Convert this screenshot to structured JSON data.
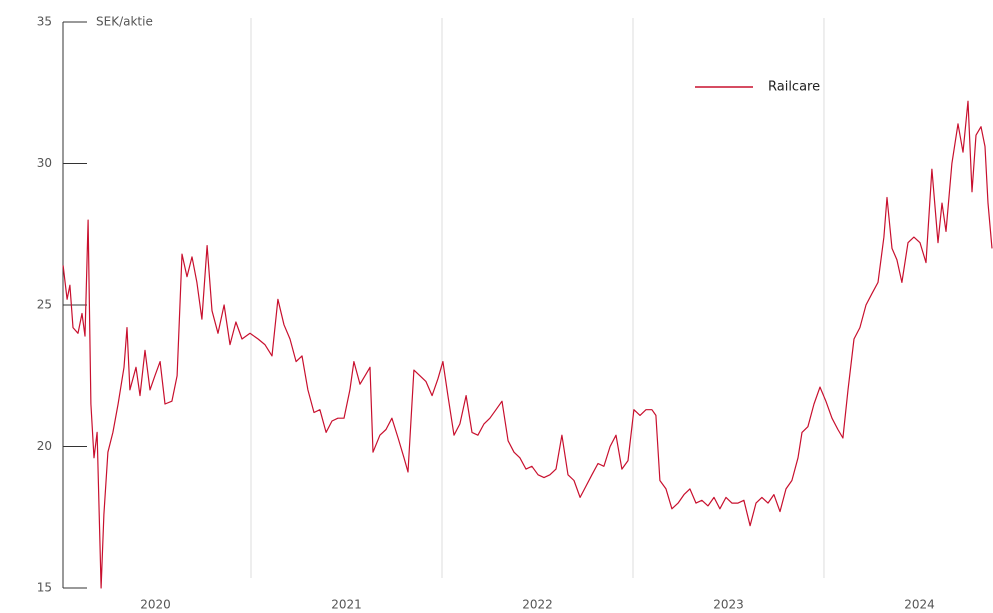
{
  "chart_data": {
    "type": "line",
    "y_label": "SEK/aktie",
    "x": [
      2020.016,
      2020.037,
      2020.052,
      2020.068,
      2020.094,
      2020.115,
      2020.131,
      2020.147,
      2020.162,
      2020.178,
      2020.194,
      2020.215,
      2020.23,
      2020.251,
      2020.277,
      2020.304,
      2020.335,
      2020.351,
      2020.366,
      2020.398,
      2020.419,
      2020.445,
      2020.471,
      2020.497,
      2020.524,
      2020.55,
      2020.586,
      2020.613,
      2020.639,
      2020.665,
      2020.691,
      2020.717,
      2020.743,
      2020.77,
      2020.796,
      2020.827,
      2020.859,
      2020.89,
      2020.921,
      2020.953,
      2020.995,
      2021.037,
      2021.073,
      2021.11,
      2021.141,
      2021.173,
      2021.204,
      2021.236,
      2021.267,
      2021.298,
      2021.33,
      2021.361,
      2021.393,
      2021.424,
      2021.455,
      2021.487,
      2021.518,
      2021.539,
      2021.571,
      2021.597,
      2021.623,
      2021.639,
      2021.675,
      2021.707,
      2021.738,
      2021.77,
      2021.801,
      2021.822,
      2021.853,
      2021.885,
      2021.916,
      2021.948,
      2021.979,
      2022.005,
      2022.031,
      2022.063,
      2022.094,
      2022.126,
      2022.157,
      2022.188,
      2022.22,
      2022.251,
      2022.283,
      2022.314,
      2022.346,
      2022.377,
      2022.408,
      2022.44,
      2022.471,
      2022.503,
      2022.534,
      2022.565,
      2022.597,
      2022.628,
      2022.66,
      2022.691,
      2022.723,
      2022.754,
      2022.785,
      2022.817,
      2022.848,
      2022.88,
      2022.911,
      2022.942,
      2022.974,
      2023.005,
      2023.037,
      2023.068,
      2023.099,
      2023.12,
      2023.141,
      2023.173,
      2023.204,
      2023.236,
      2023.267,
      2023.298,
      2023.33,
      2023.361,
      2023.393,
      2023.424,
      2023.455,
      2023.487,
      2023.518,
      2023.55,
      2023.581,
      2023.613,
      2023.644,
      2023.675,
      2023.707,
      2023.738,
      2023.77,
      2023.801,
      2023.832,
      2023.864,
      2023.885,
      2023.916,
      2023.948,
      2023.979,
      2024.01,
      2024.042,
      2024.073,
      2024.099,
      2024.126,
      2024.157,
      2024.188,
      2024.22,
      2024.251,
      2024.283,
      2024.314,
      2024.33,
      2024.356,
      2024.382,
      2024.408,
      2024.44,
      2024.471,
      2024.503,
      2024.534,
      2024.565,
      2024.597,
      2024.618,
      2024.639,
      2024.67,
      2024.702,
      2024.728,
      2024.754,
      2024.775,
      2024.796,
      2024.822,
      2024.843,
      2024.859,
      2024.88
    ],
    "series": [
      {
        "name": "Railcare",
        "color": "#c8102e",
        "values": [
          26.4,
          25.2,
          25.7,
          24.2,
          24.0,
          24.7,
          23.9,
          28.0,
          21.5,
          19.6,
          20.5,
          15.0,
          17.6,
          19.8,
          20.5,
          21.5,
          22.8,
          24.2,
          22.0,
          22.8,
          21.8,
          23.4,
          22.0,
          22.5,
          23.0,
          21.5,
          21.6,
          22.5,
          26.8,
          26.0,
          26.7,
          25.8,
          24.5,
          27.1,
          24.8,
          24.0,
          25.0,
          23.6,
          24.4,
          23.8,
          24.0,
          23.8,
          23.6,
          23.2,
          25.2,
          24.3,
          23.8,
          23.0,
          23.2,
          22.0,
          21.2,
          21.3,
          20.5,
          20.9,
          21.0,
          21.0,
          22.0,
          23.0,
          22.2,
          22.5,
          22.8,
          19.8,
          20.4,
          20.6,
          21.0,
          20.3,
          19.6,
          19.1,
          22.7,
          22.5,
          22.3,
          21.8,
          22.4,
          23.0,
          21.8,
          20.4,
          20.8,
          21.8,
          20.5,
          20.4,
          20.8,
          21.0,
          21.3,
          21.6,
          20.2,
          19.8,
          19.6,
          19.2,
          19.3,
          19.0,
          18.9,
          19.0,
          19.2,
          20.4,
          19.0,
          18.8,
          18.2,
          18.6,
          19.0,
          19.4,
          19.3,
          20.0,
          20.4,
          19.2,
          19.5,
          21.3,
          21.1,
          21.3,
          21.3,
          21.1,
          18.8,
          18.5,
          17.8,
          18.0,
          18.3,
          18.5,
          18.0,
          18.1,
          17.9,
          18.2,
          17.8,
          18.2,
          18.0,
          18.0,
          18.1,
          17.2,
          18.0,
          18.2,
          18.0,
          18.3,
          17.7,
          18.5,
          18.8,
          19.6,
          20.5,
          20.7,
          21.5,
          22.1,
          21.6,
          21.0,
          20.6,
          20.3,
          22.0,
          23.8,
          24.2,
          25.0,
          25.4,
          25.8,
          27.4,
          28.8,
          27.0,
          26.6,
          25.8,
          27.2,
          27.4,
          27.2,
          26.5,
          29.8,
          27.2,
          28.6,
          27.6,
          30.0,
          31.4,
          30.4,
          32.2,
          29.0,
          31.0,
          31.3,
          30.6,
          28.6,
          27.0
        ]
      }
    ],
    "xlim": [
      2020,
      2024.885
    ],
    "xticks": [
      {
        "value": 2020.5,
        "label": "2020"
      },
      {
        "value": 2021.5,
        "label": "2021"
      },
      {
        "value": 2022.5,
        "label": "2022"
      },
      {
        "value": 2023.5,
        "label": "2023"
      },
      {
        "value": 2024.5,
        "label": "2024"
      }
    ],
    "year_dividers": [
      2021,
      2022,
      2023,
      2024
    ],
    "ylim": [
      15,
      35
    ],
    "yticks": [
      15,
      20,
      25,
      30,
      35
    ],
    "legend": "upper right"
  }
}
